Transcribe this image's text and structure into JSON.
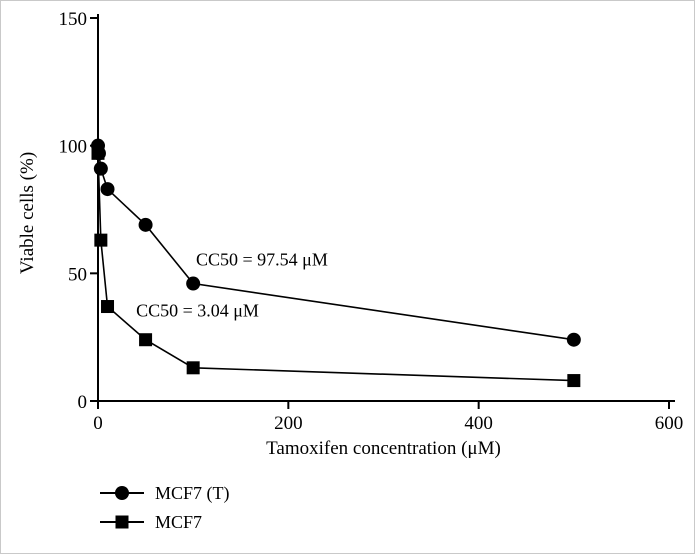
{
  "figure": {
    "background": "#ffffff"
  },
  "chart_data": {
    "type": "line",
    "title": "",
    "xlabel": "Tamoxifen concentration (μM)",
    "ylabel": "Viable cells (%)",
    "xlim": [
      0,
      600
    ],
    "ylim": [
      0,
      150
    ],
    "xticks": [
      0,
      200,
      400,
      600
    ],
    "yticks": [
      0,
      50,
      100,
      150
    ],
    "grid": false,
    "line_color": "#000000",
    "legend_position": "bottom-left",
    "series": [
      {
        "name": "MCF7 (T)",
        "marker": "circle",
        "x": [
          0,
          1,
          3,
          10,
          50,
          100,
          500
        ],
        "y": [
          100,
          97,
          91,
          83,
          69,
          46,
          24
        ]
      },
      {
        "name": "MCF7",
        "marker": "square",
        "x": [
          0,
          3,
          10,
          50,
          100,
          500
        ],
        "y": [
          97,
          63,
          37,
          24,
          13,
          8
        ]
      }
    ],
    "annotations": [
      {
        "text": "CC50 = 97.54 μM",
        "x": 103,
        "y": 53
      },
      {
        "text": "CC50 = 3.04 μM",
        "x": 40,
        "y": 33
      }
    ]
  }
}
